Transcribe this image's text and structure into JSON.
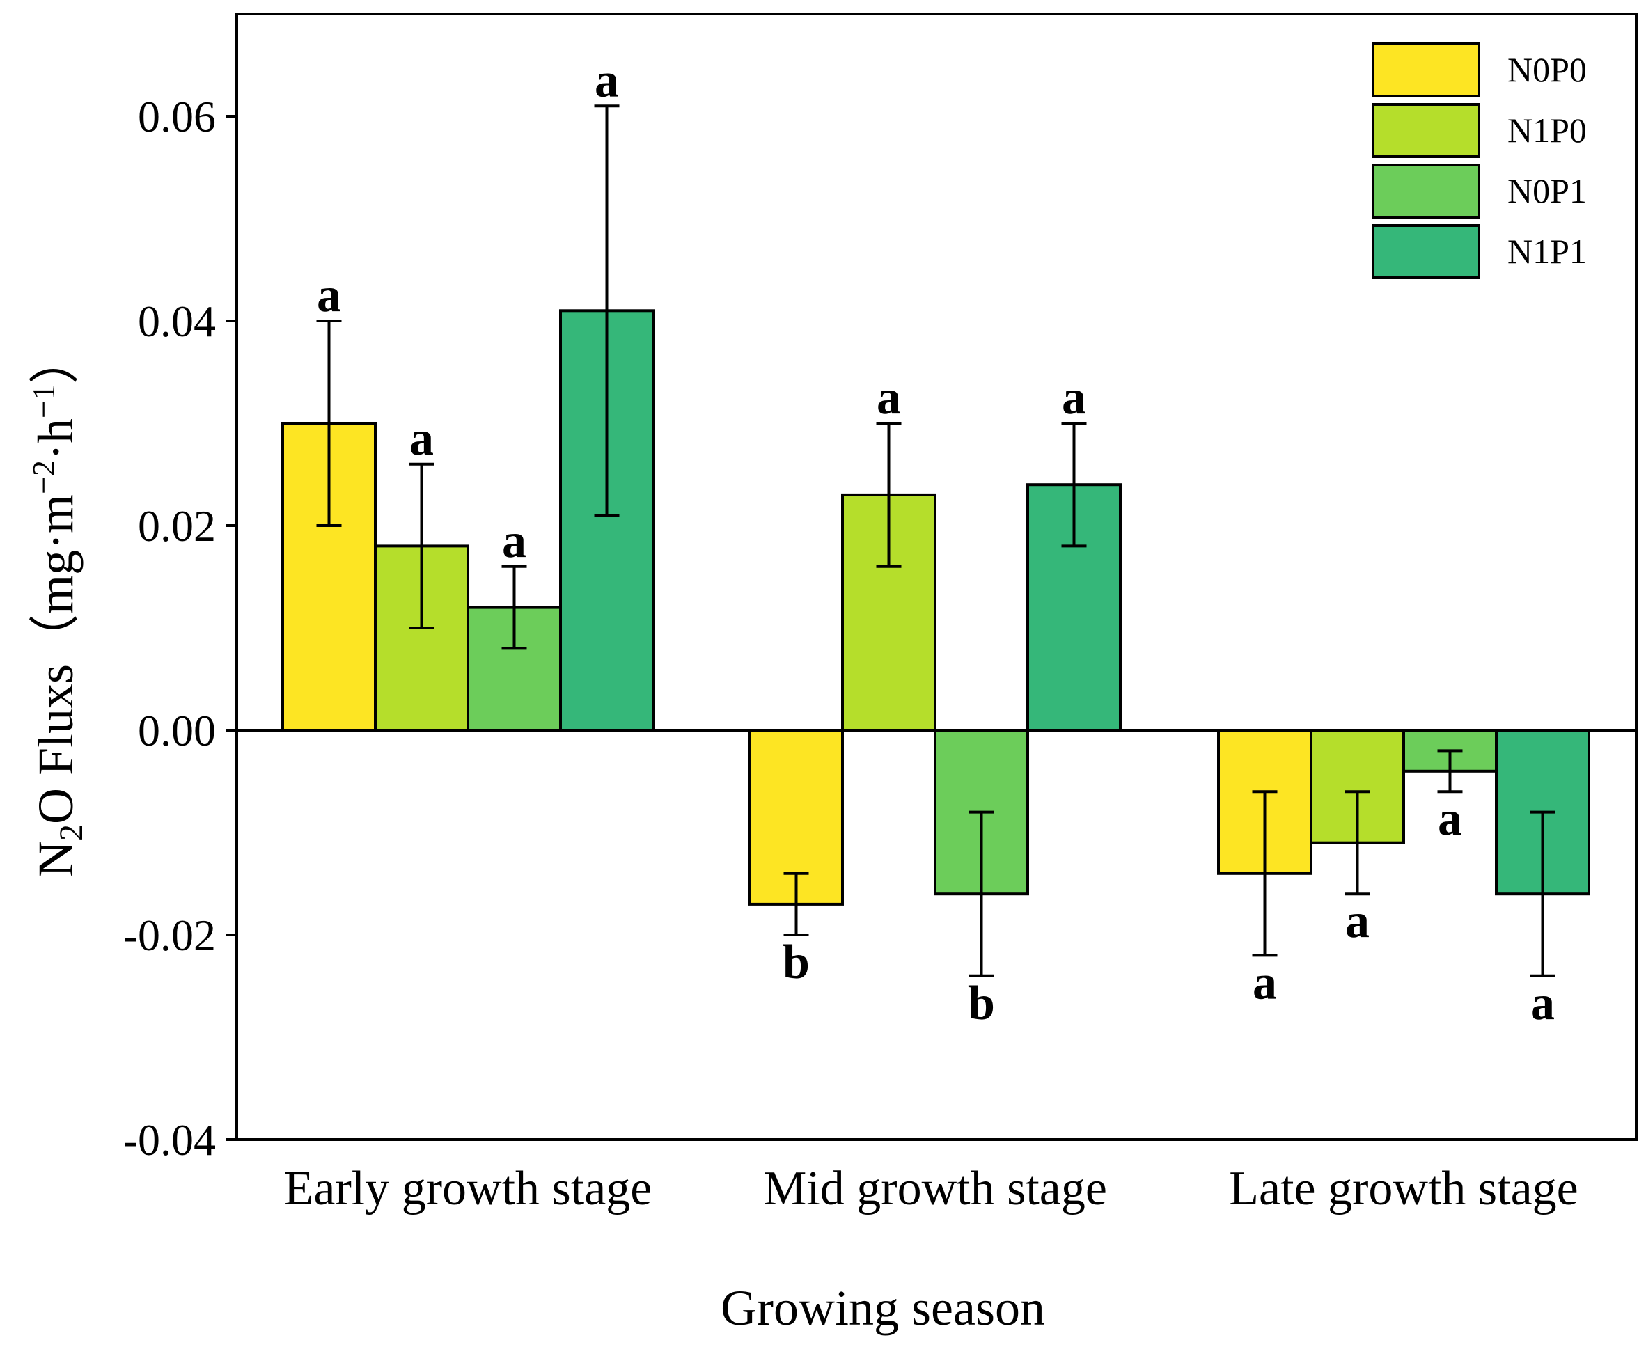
{
  "chart_data": {
    "type": "bar",
    "xlabel": "Growing season",
    "ylabel": {
      "prefix": "N",
      "subscript": "2",
      "suffix": "O Fluxs",
      "unit_open": "（mg·m",
      "unit_exp1": "−2",
      "unit_mid": "·h",
      "unit_exp2": "−1",
      "unit_close": "）"
    },
    "ylim": [
      -0.04,
      0.07
    ],
    "yticks": [
      -0.04,
      -0.02,
      0.0,
      0.02,
      0.04,
      0.06
    ],
    "ytick_labels": [
      "-0.04",
      "-0.02",
      "0.00",
      "0.02",
      "0.04",
      "0.06"
    ],
    "legend_position": "top-right",
    "grid": false,
    "categories": [
      "Early growth stage",
      "Mid growth stage",
      "Late growth stage"
    ],
    "series": [
      {
        "name": "N0P0",
        "color": "#FDE523",
        "values": [
          0.03,
          -0.017,
          -0.014
        ],
        "error": [
          0.01,
          0.003,
          0.008
        ],
        "labels": [
          "a",
          "b",
          "a"
        ]
      },
      {
        "name": "N1P0",
        "color": "#B5DE2B",
        "values": [
          0.018,
          0.023,
          -0.011
        ],
        "error": [
          0.008,
          0.007,
          0.005
        ],
        "labels": [
          "a",
          "a",
          "a"
        ]
      },
      {
        "name": "N0P1",
        "color": "#6CCD5A",
        "values": [
          0.012,
          -0.016,
          -0.004
        ],
        "error": [
          0.004,
          0.008,
          0.002
        ],
        "labels": [
          "a",
          "b",
          "a"
        ]
      },
      {
        "name": "N1P1",
        "color": "#35B779",
        "values": [
          0.041,
          0.024,
          -0.016
        ],
        "error": [
          0.02,
          0.006,
          0.008
        ],
        "labels": [
          "a",
          "a",
          "a"
        ]
      }
    ]
  }
}
